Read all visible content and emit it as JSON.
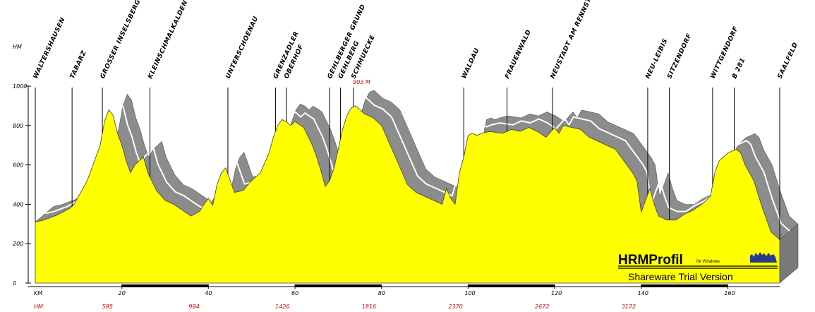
{
  "chart_data": {
    "type": "area",
    "title": "",
    "ylabel": "HM",
    "xlabel": "KM",
    "x_unit_label": "KM",
    "hm_row_label": "HM",
    "xlim": [
      0,
      172
    ],
    "ylim": [
      0,
      1000
    ],
    "y_ticks": [
      0,
      200,
      400,
      600,
      800,
      1000
    ],
    "x_ticks": [
      20,
      40,
      60,
      80,
      100,
      120,
      140,
      160
    ],
    "profile": {
      "x": [
        0,
        2,
        5,
        8,
        9,
        12,
        14,
        15,
        16,
        17,
        18,
        19,
        20,
        21,
        22,
        23,
        25,
        26,
        28,
        30,
        32,
        34,
        36,
        38,
        39,
        40,
        41,
        42,
        43,
        44,
        46,
        48,
        50,
        52,
        54,
        55,
        56,
        57,
        58,
        59,
        60,
        62,
        64,
        65,
        66,
        67,
        68,
        69,
        70,
        71,
        72,
        73,
        74,
        75,
        76,
        78,
        80,
        82,
        84,
        86,
        88,
        90,
        92,
        94,
        95,
        96,
        97,
        98,
        99,
        100,
        101,
        102,
        103,
        105,
        108,
        110,
        112,
        114,
        116,
        118,
        120,
        121,
        122,
        124,
        126,
        128,
        130,
        132,
        134,
        136,
        138,
        139,
        140,
        141,
        142,
        143,
        144,
        146,
        148,
        150,
        152,
        154,
        156,
        157,
        158,
        160,
        162,
        163,
        164,
        166,
        168,
        170,
        172
      ],
      "y": [
        310,
        320,
        345,
        380,
        400,
        520,
        640,
        700,
        820,
        880,
        850,
        760,
        700,
        620,
        560,
        600,
        640,
        560,
        470,
        420,
        400,
        370,
        340,
        365,
        400,
        430,
        395,
        500,
        560,
        585,
        460,
        470,
        520,
        560,
        660,
        740,
        800,
        830,
        820,
        800,
        820,
        790,
        700,
        640,
        570,
        490,
        520,
        580,
        680,
        780,
        850,
        890,
        900,
        880,
        860,
        840,
        800,
        700,
        600,
        500,
        460,
        440,
        420,
        400,
        480,
        430,
        400,
        560,
        640,
        750,
        760,
        750,
        760,
        770,
        760,
        780,
        770,
        790,
        770,
        740,
        790,
        760,
        800,
        790,
        780,
        740,
        720,
        700,
        680,
        620,
        560,
        520,
        360,
        420,
        480,
        400,
        340,
        320,
        320,
        350,
        370,
        400,
        440,
        560,
        620,
        660,
        680,
        660,
        600,
        520,
        380,
        260,
        220
      ],
      "color": "#ffff00"
    },
    "shadow_color": "#8c8c8c",
    "waypoints": [
      {
        "name": "WALTERSHAUSEN",
        "km": 0
      },
      {
        "name": "TABARZ",
        "km": 8.5
      },
      {
        "name": "GROSSER INSELSBERG",
        "km": 15.5
      },
      {
        "name": "KLEINSCHMALKALDEN",
        "km": 26.5
      },
      {
        "name": "UNTERSCHOENAU",
        "km": 44.5
      },
      {
        "name": "GRENZADLER",
        "km": 55.5
      },
      {
        "name": "OBERHOF",
        "km": 58
      },
      {
        "name": "GEHLBERGER GRUND",
        "km": 68
      },
      {
        "name": "GEHLBERG",
        "km": 70.5
      },
      {
        "name": "SCHMUECKE",
        "km": 73.5
      },
      {
        "name": "WALDAU",
        "km": 99
      },
      {
        "name": "FRAUENWALD",
        "km": 109
      },
      {
        "name": "NEUSTADT AM RENNSTEIG",
        "km": 119.5
      },
      {
        "name": "NEU-LEIBIS",
        "km": 141.5
      },
      {
        "name": "SITZENDORF",
        "km": 146.5
      },
      {
        "name": "WITTGENDORF",
        "km": 156.5
      },
      {
        "name": "B 281",
        "km": 161.5
      },
      {
        "name": "SAALFELD",
        "km": 172
      }
    ],
    "annotations": [
      {
        "text": "903 M",
        "km": 76
      }
    ],
    "cumulative_hm": [
      {
        "km": 20,
        "value": "595"
      },
      {
        "km": 40,
        "value": "994"
      },
      {
        "km": 60,
        "value": "1426"
      },
      {
        "km": 80,
        "value": "1816"
      },
      {
        "km": 100,
        "value": "2370"
      },
      {
        "km": 120,
        "value": "2672"
      },
      {
        "km": 140,
        "value": "3172"
      }
    ],
    "grid": false
  },
  "watermark": {
    "title": "HRMProfil",
    "subtitle": "für Windows",
    "trial": "Shareware Trial  Version"
  }
}
